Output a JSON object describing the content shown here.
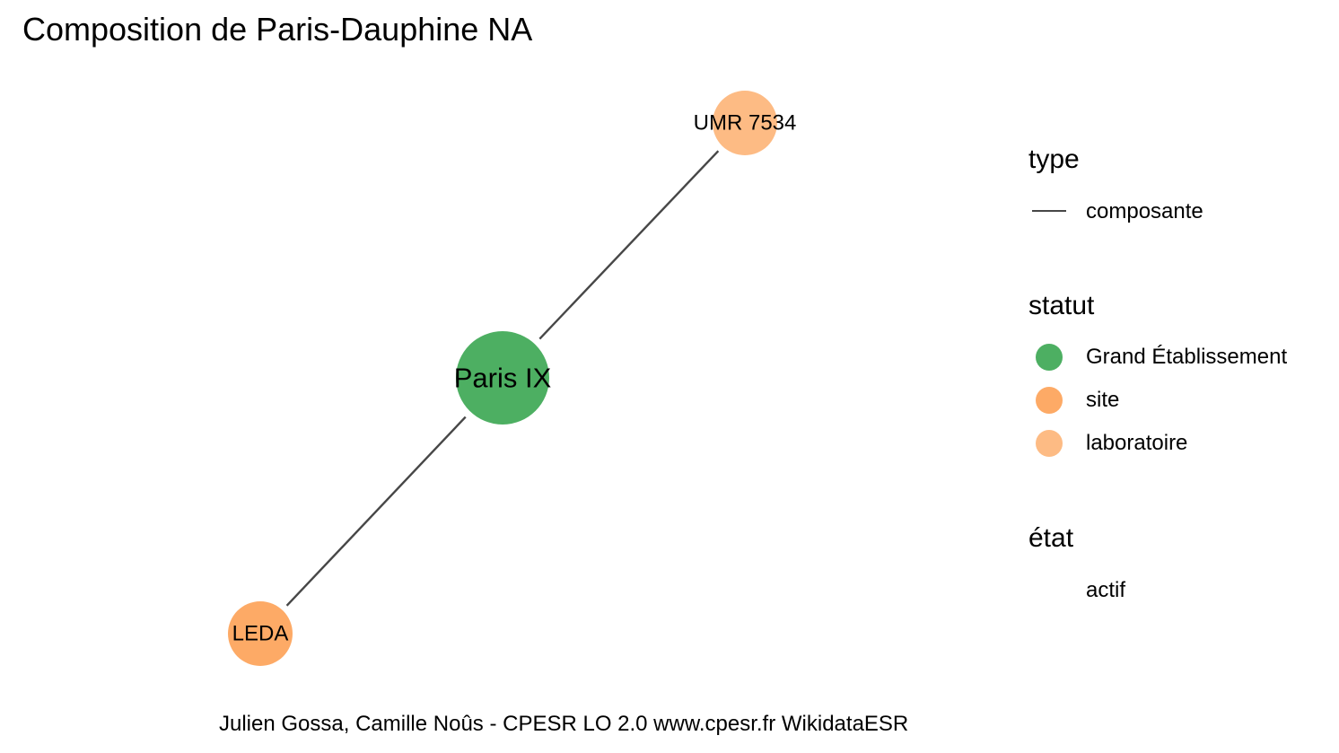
{
  "title": "Composition de Paris-Dauphine NA",
  "caption": "Julien Gossa, Camille Noûs - CPESR LO 2.0 www.cpesr.fr WikidataESR",
  "graph": {
    "edge_color": "#474747",
    "nodes": [
      {
        "id": "paris-ix",
        "label": "Paris IX",
        "statut": "Grand Établissement",
        "etat": "actif",
        "color": "#4daf62"
      },
      {
        "id": "umr-7534",
        "label": "UMR 7534",
        "statut": "laboratoire",
        "etat": "actif",
        "color": "#fdbb84"
      },
      {
        "id": "leda",
        "label": "LEDA",
        "statut": "site",
        "etat": "actif",
        "color": "#fdaa66"
      }
    ],
    "edges": [
      {
        "from": "paris-ix",
        "to": "umr-7534",
        "type": "composante"
      },
      {
        "from": "paris-ix",
        "to": "leda",
        "type": "composante"
      }
    ]
  },
  "legend": {
    "type": {
      "title": "type",
      "items": [
        {
          "label": "composante",
          "color": "#474747"
        }
      ]
    },
    "statut": {
      "title": "statut",
      "items": [
        {
          "label": "Grand Établissement",
          "color": "#4daf62"
        },
        {
          "label": "site",
          "color": "#fdaa66"
        },
        {
          "label": "laboratoire",
          "color": "#fdbb84"
        }
      ]
    },
    "etat": {
      "title": "état",
      "items": [
        {
          "label": "actif"
        }
      ]
    }
  }
}
